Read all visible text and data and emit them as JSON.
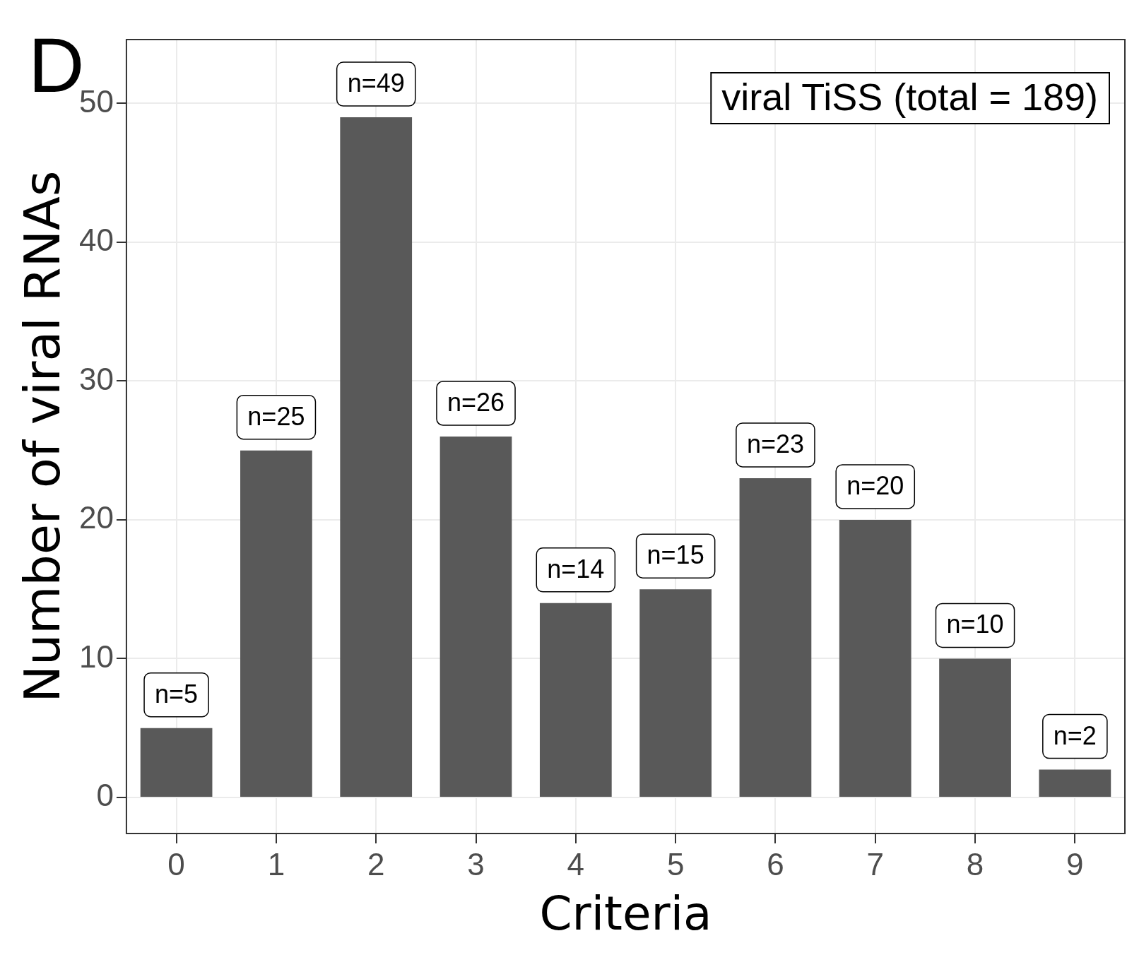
{
  "chart_data": {
    "type": "bar",
    "xlabel": "Criteria",
    "ylabel": "Number of viral RNAs",
    "categories": [
      "0",
      "1",
      "2",
      "3",
      "4",
      "5",
      "6",
      "7",
      "8",
      "9"
    ],
    "values": [
      5,
      25,
      49,
      26,
      14,
      15,
      23,
      20,
      10,
      2
    ],
    "value_labels": [
      "n=5",
      "n=25",
      "n=49",
      "n=26",
      "n=14",
      "n=15",
      "n=23",
      "n=20",
      "n=10",
      "n=2"
    ],
    "color": "#595959",
    "ylim": [
      -2.6,
      54.6
    ],
    "yticks": [
      0,
      10,
      20,
      30,
      40,
      50
    ],
    "grid": true,
    "annotations": [
      "D",
      "viral TiSS (total = 189)"
    ]
  }
}
